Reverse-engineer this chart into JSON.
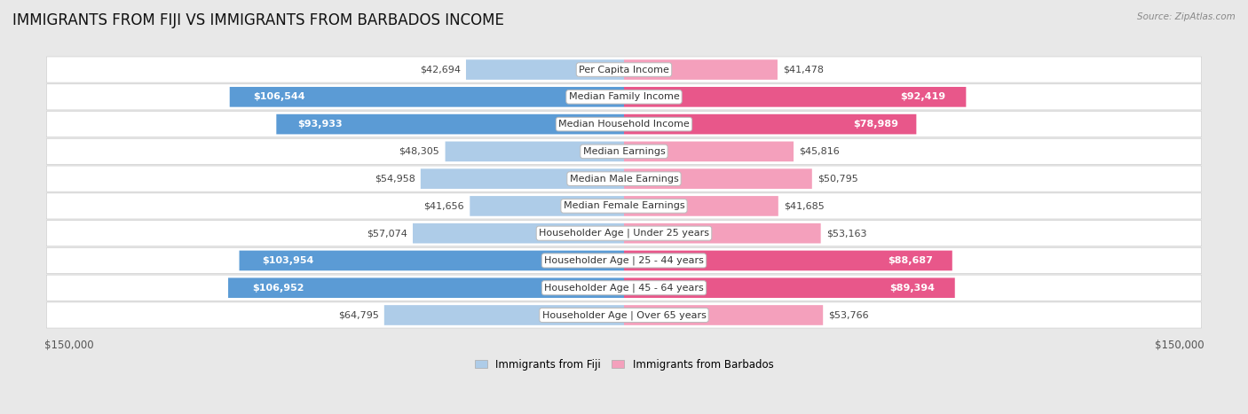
{
  "title": "IMMIGRANTS FROM FIJI VS IMMIGRANTS FROM BARBADOS INCOME",
  "source": "Source: ZipAtlas.com",
  "categories": [
    "Per Capita Income",
    "Median Family Income",
    "Median Household Income",
    "Median Earnings",
    "Median Male Earnings",
    "Median Female Earnings",
    "Householder Age | Under 25 years",
    "Householder Age | 25 - 44 years",
    "Householder Age | 45 - 64 years",
    "Householder Age | Over 65 years"
  ],
  "fiji_values": [
    42694,
    106544,
    93933,
    48305,
    54958,
    41656,
    57074,
    103954,
    106952,
    64795
  ],
  "barbados_values": [
    41478,
    92419,
    78989,
    45816,
    50795,
    41685,
    53163,
    88687,
    89394,
    53766
  ],
  "fiji_labels": [
    "$42,694",
    "$106,544",
    "$93,933",
    "$48,305",
    "$54,958",
    "$41,656",
    "$57,074",
    "$103,954",
    "$106,952",
    "$64,795"
  ],
  "barbados_labels": [
    "$41,478",
    "$92,419",
    "$78,989",
    "$45,816",
    "$50,795",
    "$41,685",
    "$53,163",
    "$88,687",
    "$89,394",
    "$53,766"
  ],
  "fiji_color_light": "#aecce8",
  "fiji_color_dark": "#5b9bd5",
  "barbados_color_light": "#f4a0bc",
  "barbados_color_dark": "#e8578a",
  "fiji_inside_threshold": 70000,
  "barbados_inside_threshold": 70000,
  "max_value": 150000,
  "page_bg": "#e8e8e8",
  "row_bg": "#ffffff",
  "row_border": "#d0d0d0",
  "legend_fiji": "Immigrants from Fiji",
  "legend_barbados": "Immigrants from Barbados",
  "title_fontsize": 12,
  "label_fontsize": 8,
  "category_fontsize": 8,
  "axis_label_fontsize": 8.5
}
